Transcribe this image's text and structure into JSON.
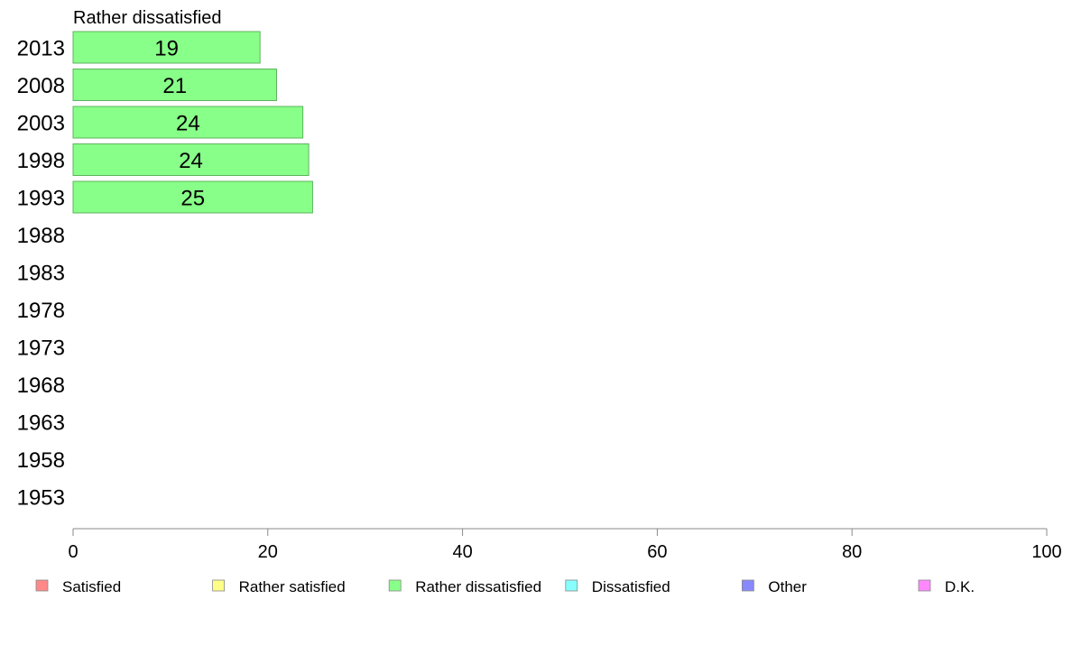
{
  "chart_data": {
    "type": "bar",
    "orientation": "horizontal",
    "title": "Rather dissatisfied",
    "categories": [
      "2013",
      "2008",
      "2003",
      "1998",
      "1993",
      "1988",
      "1983",
      "1978",
      "1973",
      "1968",
      "1963",
      "1958",
      "1953"
    ],
    "series": [
      {
        "name": "Rather dissatisfied",
        "color": "#88ff88",
        "values": [
          19.2,
          20.9,
          23.6,
          24.2,
          24.6,
          null,
          null,
          null,
          null,
          null,
          null,
          null,
          null
        ],
        "labels": [
          "19",
          "21",
          "24",
          "24",
          "25",
          "",
          "",
          "",
          "",
          "",
          "",
          "",
          ""
        ]
      }
    ],
    "xlim": [
      0,
      100
    ],
    "xticks": [
      "0",
      "20",
      "40",
      "60",
      "80",
      "100"
    ],
    "grid": false,
    "legend": {
      "placement": "bottom",
      "items": [
        {
          "label": "Satisfied",
          "color": "#ff8888"
        },
        {
          "label": "Rather satisfied",
          "color": "#ffff88"
        },
        {
          "label": "Rather dissatisfied",
          "color": "#88ff88"
        },
        {
          "label": "Dissatisfied",
          "color": "#88ffff"
        },
        {
          "label": "Other",
          "color": "#8888ff"
        },
        {
          "label": "D.K.",
          "color": "#ff88ff"
        }
      ]
    }
  }
}
